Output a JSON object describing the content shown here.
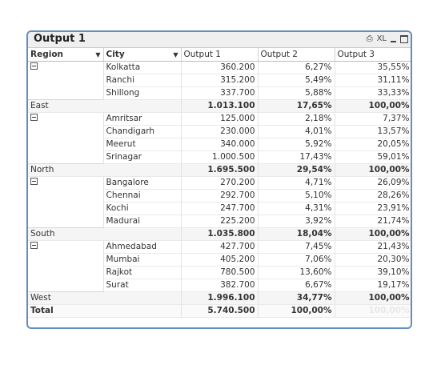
{
  "window": {
    "title": "Output 1",
    "xl_label": "XL"
  },
  "columns": {
    "region": "Region",
    "city": "City",
    "output1": "Output 1",
    "output2": "Output 2",
    "output3": "Output 3"
  },
  "groups": [
    {
      "region": "East",
      "rows": [
        {
          "city": "Kolkatta",
          "o1": "360.200",
          "o2": "6,27%",
          "o3": "35,55%"
        },
        {
          "city": "Ranchi",
          "o1": "315.200",
          "o2": "5,49%",
          "o3": "31,11%"
        },
        {
          "city": "Shillong",
          "o1": "337.700",
          "o2": "5,88%",
          "o3": "33,33%"
        }
      ],
      "subtotal": {
        "o1": "1.013.100",
        "o2": "17,65%",
        "o3": "100,00%"
      }
    },
    {
      "region": "North",
      "rows": [
        {
          "city": "Amritsar",
          "o1": "125.000",
          "o2": "2,18%",
          "o3": "7,37%"
        },
        {
          "city": "Chandigarh",
          "o1": "230.000",
          "o2": "4,01%",
          "o3": "13,57%"
        },
        {
          "city": "Meerut",
          "o1": "340.000",
          "o2": "5,92%",
          "o3": "20,05%"
        },
        {
          "city": "Srinagar",
          "o1": "1.000.500",
          "o2": "17,43%",
          "o3": "59,01%"
        }
      ],
      "subtotal": {
        "o1": "1.695.500",
        "o2": "29,54%",
        "o3": "100,00%"
      }
    },
    {
      "region": "South",
      "rows": [
        {
          "city": "Bangalore",
          "o1": "270.200",
          "o2": "4,71%",
          "o3": "26,09%"
        },
        {
          "city": "Chennai",
          "o1": "292.700",
          "o2": "5,10%",
          "o3": "28,26%"
        },
        {
          "city": "Kochi",
          "o1": "247.700",
          "o2": "4,31%",
          "o3": "23,91%"
        },
        {
          "city": "Madurai",
          "o1": "225.200",
          "o2": "3,92%",
          "o3": "21,74%"
        }
      ],
      "subtotal": {
        "o1": "1.035.800",
        "o2": "18,04%",
        "o3": "100,00%"
      }
    },
    {
      "region": "West",
      "rows": [
        {
          "city": "Ahmedabad",
          "o1": "427.700",
          "o2": "7,45%",
          "o3": "21,43%"
        },
        {
          "city": "Mumbai",
          "o1": "405.200",
          "o2": "7,06%",
          "o3": "20,30%"
        },
        {
          "city": "Rajkot",
          "o1": "780.500",
          "o2": "13,60%",
          "o3": "39,10%"
        },
        {
          "city": "Surat",
          "o1": "382.700",
          "o2": "6,67%",
          "o3": "19,17%"
        }
      ],
      "subtotal": {
        "o1": "1.996.100",
        "o2": "34,77%",
        "o3": "100,00%"
      }
    }
  ],
  "total": {
    "label": "Total",
    "o1": "5.740.500",
    "o2": "100,00%",
    "o3": "100,00%"
  }
}
